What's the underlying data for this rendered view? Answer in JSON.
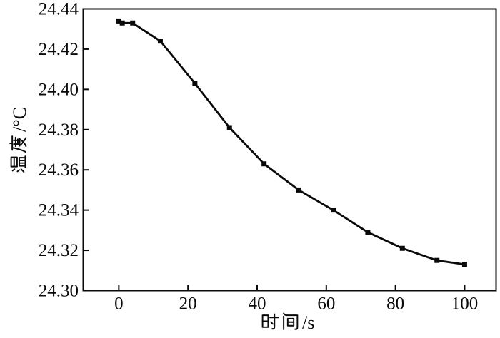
{
  "figure": {
    "background": "#ffffff",
    "foreground": "#0a0a0a"
  },
  "chart_data": {
    "type": "line",
    "title": "",
    "xlabel": "时间/s",
    "ylabel": "温度/°C",
    "series": [
      {
        "name": "temperature",
        "x": [
          0,
          1,
          4,
          12,
          22,
          32,
          42,
          52,
          62,
          72,
          82,
          92,
          100
        ],
        "y": [
          24.434,
          24.433,
          24.433,
          24.424,
          24.403,
          24.381,
          24.363,
          24.35,
          24.34,
          24.329,
          24.321,
          24.315,
          24.313
        ],
        "marker": "square",
        "color": "#0a0a0a"
      }
    ],
    "xlim": [
      -10.3,
      109.1
    ],
    "ylim": [
      24.3,
      24.44
    ],
    "x_ticks": [
      0,
      20,
      40,
      60,
      80,
      100
    ],
    "x_tick_labels": [
      "0",
      "20",
      "40",
      "60",
      "80",
      "100"
    ],
    "y_ticks": [
      24.3,
      24.32,
      24.34,
      24.36,
      24.38,
      24.4,
      24.42,
      24.44
    ],
    "y_tick_labels": [
      "24.30",
      "24.32",
      "24.34",
      "24.36",
      "24.38",
      "24.40",
      "24.42",
      "24.44"
    ],
    "grid": false,
    "legend": "none",
    "frame": "full-box",
    "tick_direction": "in"
  }
}
